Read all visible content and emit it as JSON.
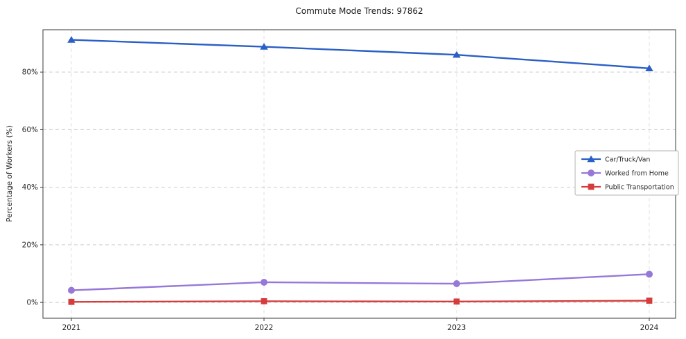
{
  "chart_data": {
    "type": "line",
    "title": "Commute Mode Trends: 97862",
    "xlabel": "",
    "ylabel": "Percentage of Workers (%)",
    "x_categories": [
      "2021",
      "2022",
      "2023",
      "2024"
    ],
    "ytick_labels": [
      "0%",
      "20%",
      "40%",
      "60%",
      "80%"
    ],
    "ytick_values": [
      0,
      20,
      40,
      60,
      80
    ],
    "ylim": [
      -5.5,
      94.7
    ],
    "grid": true,
    "grid_style": "dashed",
    "legend_position": "center-right",
    "series": [
      {
        "name": "Car/Truck/Van",
        "marker": "triangle",
        "color": "#2a5fc5",
        "values": [
          91.2,
          88.8,
          86.0,
          81.3
        ]
      },
      {
        "name": "Worked from Home",
        "marker": "circle",
        "color": "#9678d8",
        "values": [
          4.2,
          7.0,
          6.5,
          9.8
        ]
      },
      {
        "name": "Public Transportation",
        "marker": "square",
        "color": "#d63c3c",
        "values": [
          0.2,
          0.4,
          0.3,
          0.6
        ]
      }
    ]
  }
}
